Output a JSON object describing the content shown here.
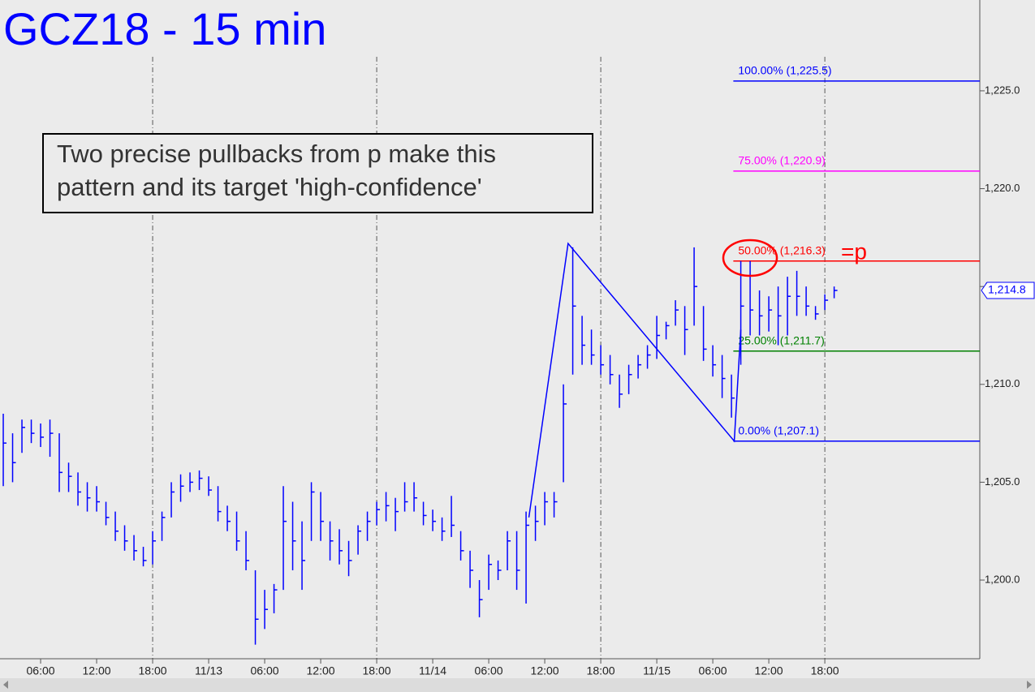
{
  "chart_data": {
    "type": "ohlc",
    "title": "GCZ18 - 15 min",
    "annotation": [
      "Two precise pullbacks from p make this",
      "pattern and its target 'high-confidence'"
    ],
    "marker_text": "=p",
    "color": "#0000ff",
    "ylim": [
      1195.98,
      1229.64
    ],
    "yticks": [
      {
        "value": 1200,
        "label": "1,200.0"
      },
      {
        "value": 1205,
        "label": "1,205.0"
      },
      {
        "value": 1210,
        "label": "1,210.0"
      },
      {
        "value": 1215,
        "label": "1,215.0"
      },
      {
        "value": 1220,
        "label": "1,220.0"
      },
      {
        "value": 1225,
        "label": "1,225.0"
      }
    ],
    "xlim": [
      -0.35,
      104.6
    ],
    "xticks": [
      {
        "value": 4,
        "label": "06:00"
      },
      {
        "value": 10,
        "label": "12:00"
      },
      {
        "value": 16,
        "label": "18:00"
      },
      {
        "value": 22,
        "label": "11/13"
      },
      {
        "value": 28,
        "label": "06:00"
      },
      {
        "value": 34,
        "label": "12:00"
      },
      {
        "value": 40,
        "label": "18:00"
      },
      {
        "value": 46,
        "label": "11/14"
      },
      {
        "value": 52,
        "label": "06:00"
      },
      {
        "value": 58,
        "label": "12:00"
      },
      {
        "value": 64,
        "label": "18:00"
      },
      {
        "value": 70,
        "label": "11/15"
      },
      {
        "value": 76,
        "label": "06:00"
      },
      {
        "value": 82,
        "label": "12:00"
      },
      {
        "value": 88,
        "label": "18:00"
      }
    ],
    "session_lines": [
      16,
      40,
      64,
      88
    ],
    "high": [
      1208.5,
      1207.5,
      1208.2,
      1208.2,
      1208,
      1208.2,
      1207.5,
      1206,
      1205.5,
      1205,
      1204.8,
      1204,
      1203.5,
      1202.8,
      1202.3,
      1201.7,
      1202.5,
      1203.5,
      1205,
      1205.4,
      1205.5,
      1205.6,
      1205.3,
      1204.8,
      1203.8,
      1203.5,
      1202.5,
      1200.5,
      1199.5,
      1199.8,
      1204.8,
      1204,
      1203,
      1205,
      1204.5,
      1203,
      1202.6,
      1202,
      1202.8,
      1203.5,
      1204,
      1204.5,
      1204.2,
      1205,
      1205,
      1204,
      1203.6,
      1203.2,
      1204.3,
      1202.5,
      1201.5,
      1200,
      1201.3,
      1201,
      1202.5,
      1202.5,
      1203.5,
      1203.8,
      1204.5,
      1204.5,
      1210,
      1217,
      1213.5,
      1212.8,
      1212,
      1211.5,
      1210.5,
      1211,
      1211.5,
      1212,
      1213.5,
      1213.2,
      1214.3,
      1214,
      1217,
      1214,
      1212,
      1211.5,
      1210.5,
      1216.3,
      1216.3,
      1214.8,
      1214.5,
      1215,
      1215.5,
      1215.8,
      1215,
      1214,
      1214.6,
      1215
    ],
    "low": [
      1204.8,
      1205,
      1206.5,
      1207,
      1206.8,
      1206.3,
      1204.5,
      1204.5,
      1203.8,
      1203.5,
      1203.5,
      1202.8,
      1202,
      1201.5,
      1201,
      1200.7,
      1200.8,
      1202,
      1203.2,
      1204,
      1204.5,
      1204.6,
      1204.3,
      1203,
      1202.5,
      1201.5,
      1200.5,
      1196.7,
      1197.5,
      1198.3,
      1199.5,
      1200.5,
      1199.5,
      1202,
      1202,
      1201,
      1200.8,
      1200.2,
      1201.3,
      1202,
      1202.8,
      1203,
      1202.5,
      1203.5,
      1203.5,
      1202.8,
      1202.5,
      1202,
      1202.2,
      1201,
      1199.6,
      1198.1,
      1199.5,
      1200,
      1200.5,
      1199.5,
      1198.8,
      1202,
      1202.8,
      1203.2,
      1205,
      1210.5,
      1211,
      1211,
      1210.5,
      1210,
      1208.8,
      1209.5,
      1210.3,
      1210.8,
      1211.3,
      1212.3,
      1213,
      1211.5,
      1213,
      1211.2,
      1210.4,
      1209.3,
      1208.3,
      1211,
      1212.5,
      1212.5,
      1212.7,
      1212,
      1212.5,
      1213.5,
      1213.5,
      1213.3,
      1213.8,
      1214.4
    ],
    "close": [
      1207,
      1206,
      1207.8,
      1207.5,
      1207.3,
      1207.5,
      1205.5,
      1205.3,
      1204.5,
      1204.2,
      1204,
      1203.2,
      1202.5,
      1202,
      1201.5,
      1201,
      1202,
      1203.2,
      1204.5,
      1204.8,
      1205,
      1205.2,
      1204.6,
      1203.5,
      1203,
      1202,
      1201,
      1198,
      1198.5,
      1199.5,
      1203,
      1202,
      1201,
      1204.5,
      1203,
      1202,
      1201.5,
      1201,
      1202.5,
      1203,
      1203.6,
      1203.8,
      1203.5,
      1204,
      1204.2,
      1203.3,
      1203,
      1202.5,
      1202.8,
      1201.5,
      1200.5,
      1199,
      1200.8,
      1200.5,
      1202,
      1200.5,
      1202.8,
      1203,
      1204,
      1204,
      1209,
      1214,
      1212,
      1211.5,
      1211,
      1210.5,
      1209.5,
      1210.5,
      1211,
      1211.5,
      1212.5,
      1213,
      1213.8,
      1212.8,
      1215,
      1211.8,
      1211,
      1210.3,
      1209.3,
      1214,
      1213.8,
      1213.5,
      1213.8,
      1213.5,
      1214.5,
      1214.5,
      1214,
      1213.6,
      1214.3,
      1214.8
    ],
    "pattern": {
      "x": [
        56.3,
        60.5,
        78.3,
        79.0
      ],
      "values": [
        1203.2,
        1217.2,
        1207.1,
        1212.8
      ]
    },
    "fib_start": 78.2,
    "fib_levels": [
      {
        "label": "100.00% (1,225.5)",
        "value": 1225.5,
        "color": "#0000ff"
      },
      {
        "label": "75.00% (1,220.9)",
        "value": 1220.9,
        "color": "#ff00ff"
      },
      {
        "label": "50.00% (1,216.3)",
        "value": 1216.3,
        "color": "#ff0000"
      },
      {
        "label": "25.00% (1,211.7)",
        "value": 1211.7,
        "color": "#008000"
      },
      {
        "label": "0.00% (1,207.1)",
        "value": 1207.1,
        "color": "#0000ff"
      }
    ],
    "last_price": {
      "value": 1214.8,
      "label": "1,214.8"
    }
  }
}
